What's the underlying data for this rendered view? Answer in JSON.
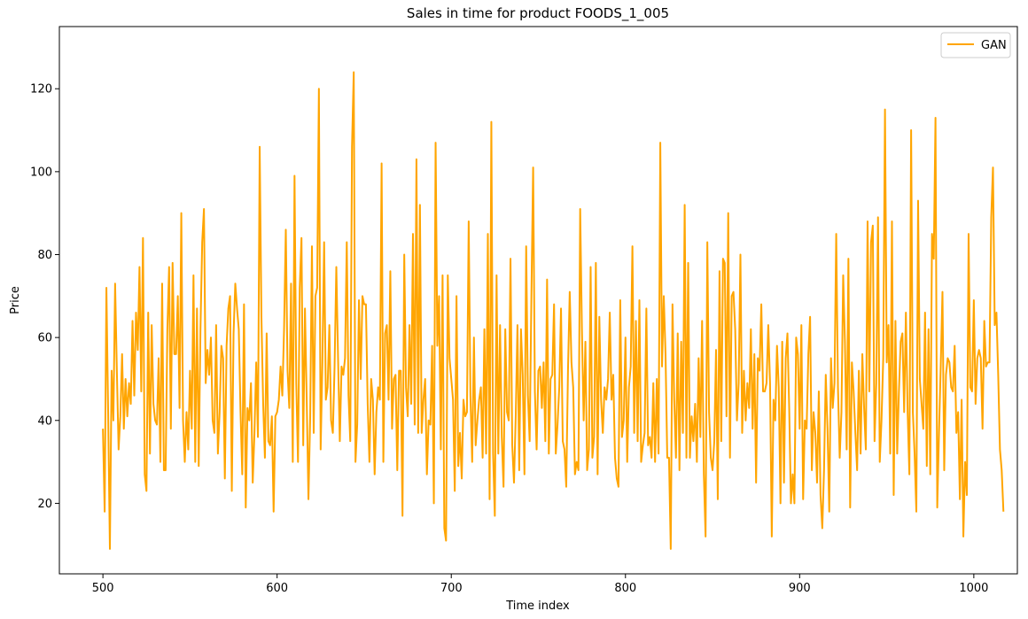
{
  "chart_data": {
    "type": "line",
    "title": "Sales in time for product FOODS_1_005",
    "xlabel": "Time index",
    "ylabel": "Price",
    "xlim": [
      475,
      1025
    ],
    "ylim": [
      3,
      135
    ],
    "xticks": [
      500,
      600,
      700,
      800,
      900,
      1000
    ],
    "yticks": [
      20,
      40,
      60,
      80,
      100,
      120
    ],
    "legend": "top-right",
    "grid": false,
    "series": [
      {
        "name": "GAN",
        "color": "#FFA500",
        "x_start": 500,
        "x_step": 1,
        "values": [
          38,
          18,
          72,
          42,
          9,
          52,
          40,
          73,
          52,
          33,
          41,
          56,
          38,
          50,
          41,
          49,
          44,
          64,
          46,
          66,
          57,
          77,
          47,
          84,
          27,
          23,
          66,
          32,
          63,
          44,
          40,
          39,
          55,
          30,
          73,
          28,
          28,
          62,
          77,
          38,
          78,
          56,
          56,
          70,
          43,
          90,
          40,
          30,
          42,
          33,
          52,
          38,
          75,
          30,
          67,
          29,
          62,
          83,
          91,
          49,
          57,
          51,
          60,
          40,
          37,
          63,
          32,
          42,
          58,
          55,
          26,
          58,
          67,
          70,
          23,
          61,
          73,
          67,
          62,
          42,
          27,
          68,
          19,
          43,
          40,
          49,
          25,
          37,
          54,
          36,
          106,
          65,
          44,
          31,
          61,
          35,
          34,
          41,
          18,
          41,
          42,
          45,
          53,
          46,
          62,
          86,
          52,
          43,
          73,
          30,
          99,
          49,
          30,
          72,
          84,
          34,
          67,
          45,
          21,
          41,
          82,
          37,
          70,
          72,
          120,
          33,
          54,
          83,
          45,
          48,
          63,
          40,
          37,
          53,
          77,
          55,
          35,
          53,
          51,
          55,
          83,
          46,
          35,
          106,
          124,
          30,
          39,
          69,
          50,
          70,
          68,
          68,
          44,
          30,
          50,
          45,
          27,
          42,
          48,
          45,
          102,
          30,
          61,
          63,
          45,
          76,
          38,
          50,
          51,
          28,
          52,
          52,
          17,
          80,
          48,
          41,
          63,
          44,
          85,
          39,
          103,
          37,
          92,
          37,
          45,
          50,
          27,
          40,
          39,
          58,
          20,
          107,
          58,
          70,
          33,
          75,
          14,
          11,
          75,
          55,
          50,
          45,
          23,
          70,
          29,
          37,
          26,
          45,
          41,
          42,
          88,
          46,
          30,
          60,
          34,
          40,
          45,
          48,
          31,
          62,
          32,
          85,
          21,
          112,
          32,
          17,
          75,
          32,
          63,
          36,
          24,
          62,
          42,
          40,
          79,
          34,
          25,
          41,
          63,
          28,
          62,
          51,
          27,
          82,
          46,
          35,
          70,
          101,
          47,
          33,
          52,
          53,
          43,
          54,
          35,
          74,
          32,
          50,
          51,
          68,
          32,
          39,
          48,
          67,
          35,
          33,
          24,
          52,
          71,
          54,
          48,
          27,
          30,
          28,
          91,
          62,
          40,
          59,
          28,
          33,
          77,
          31,
          36,
          78,
          27,
          65,
          45,
          37,
          48,
          45,
          50,
          66,
          45,
          51,
          31,
          26,
          24,
          69,
          36,
          40,
          60,
          30,
          48,
          53,
          82,
          37,
          64,
          35,
          69,
          30,
          34,
          37,
          67,
          34,
          36,
          31,
          49,
          30,
          50,
          32,
          107,
          53,
          70,
          56,
          31,
          31,
          9,
          68,
          45,
          31,
          61,
          28,
          59,
          37,
          92,
          31,
          78,
          31,
          41,
          35,
          44,
          30,
          55,
          36,
          64,
          27,
          12,
          83,
          42,
          31,
          28,
          35,
          57,
          21,
          76,
          35,
          79,
          78,
          41,
          90,
          31,
          70,
          71,
          62,
          40,
          49,
          80,
          37,
          52,
          40,
          49,
          43,
          62,
          38,
          56,
          25,
          55,
          52,
          68,
          47,
          47,
          49,
          63,
          49,
          12,
          45,
          40,
          58,
          48,
          20,
          59,
          25,
          55,
          61,
          43,
          20,
          27,
          20,
          60,
          56,
          38,
          63,
          21,
          40,
          38,
          56,
          65,
          28,
          42,
          37,
          25,
          47,
          22,
          14,
          28,
          51,
          38,
          18,
          55,
          43,
          49,
          85,
          48,
          31,
          42,
          75,
          59,
          33,
          79,
          19,
          54,
          47,
          37,
          28,
          52,
          32,
          56,
          43,
          33,
          88,
          47,
          83,
          87,
          35,
          49,
          89,
          30,
          40,
          55,
          115,
          54,
          63,
          32,
          88,
          22,
          64,
          32,
          47,
          59,
          61,
          42,
          66,
          42,
          27,
          110,
          42,
          32,
          18,
          93,
          50,
          44,
          38,
          66,
          29,
          62,
          27,
          85,
          79,
          113,
          19,
          37,
          53,
          71,
          28,
          51,
          55,
          54,
          48,
          47,
          58,
          37,
          42,
          21,
          45,
          12,
          30,
          22,
          85,
          48,
          47,
          69,
          44,
          55,
          57,
          55,
          38,
          64,
          53,
          54,
          54,
          89,
          101,
          63,
          66,
          51,
          33,
          28,
          18
        ]
      }
    ]
  }
}
